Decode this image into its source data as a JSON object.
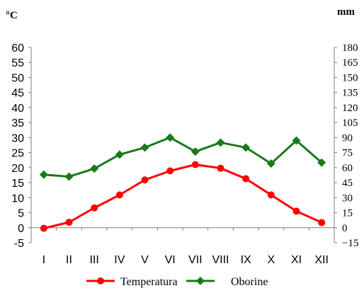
{
  "chart_data": {
    "type": "line",
    "left_unit": "°C",
    "right_unit": "mm",
    "categories": [
      "I",
      "II",
      "III",
      "IV",
      "V",
      "VI",
      "VII",
      "VIII",
      "IX",
      "X",
      "XI",
      "XII"
    ],
    "left_axis": {
      "ylim": [
        -5,
        60
      ],
      "ticks": [
        "60",
        "55",
        "50",
        "45",
        "40",
        "35",
        "30",
        "25",
        "20",
        "15",
        "10",
        "5",
        "0",
        "-5"
      ]
    },
    "right_axis": {
      "ylim": [
        -15,
        180
      ],
      "ticks": [
        "180",
        "165",
        "150",
        "135",
        "120",
        "105",
        "90",
        "75",
        "60",
        "45",
        "30",
        "15",
        "0",
        "−15"
      ]
    },
    "series": [
      {
        "name": "Temperatura",
        "axis": "left",
        "color": "#ff0000",
        "marker": "circle",
        "values": [
          -0.2,
          1.8,
          6.6,
          10.9,
          15.9,
          18.9,
          21.0,
          19.8,
          16.3,
          10.9,
          5.5,
          1.7
        ]
      },
      {
        "name": "Oborine",
        "axis": "right",
        "color": "#1a7a1a",
        "marker": "diamond",
        "values": [
          53,
          51,
          59,
          73,
          80,
          90,
          76,
          85,
          80,
          64,
          87,
          65
        ]
      }
    ],
    "grid": false,
    "legend_position": "bottom"
  }
}
